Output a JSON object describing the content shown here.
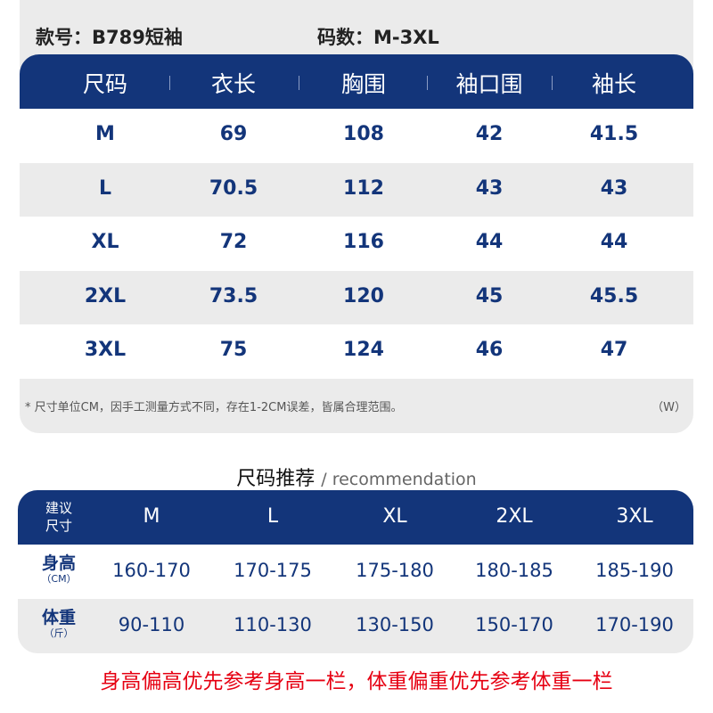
{
  "info": {
    "style_label": "款号：B789短袖",
    "size_range_label": "码数：M-3XL"
  },
  "size_table": {
    "headers": [
      "尺码",
      "衣长",
      "胸围",
      "袖口围",
      "袖长"
    ],
    "rows": [
      [
        "M",
        "69",
        "108",
        "42",
        "41.5"
      ],
      [
        "L",
        "70.5",
        "112",
        "43",
        "43"
      ],
      [
        "XL",
        "72",
        "116",
        "44",
        "44"
      ],
      [
        "2XL",
        "73.5",
        "120",
        "45",
        "45.5"
      ],
      [
        "3XL",
        "75",
        "124",
        "46",
        "47"
      ]
    ],
    "note": "* 尺寸单位CM，因手工测量方式不同，存在1-2CM误差，皆属合理范围。",
    "note_suffix": "（W）"
  },
  "recommendation": {
    "title": "尺码推荐",
    "subtitle": "/ recommendation",
    "header_label": [
      "建议",
      "尺寸"
    ],
    "sizes": [
      "M",
      "L",
      "XL",
      "2XL",
      "3XL"
    ],
    "rows": [
      {
        "label": "身高",
        "unit": "（CM）",
        "values": [
          "160-170",
          "170-175",
          "175-180",
          "180-185",
          "185-190"
        ]
      },
      {
        "label": "体重",
        "unit": "（斤）",
        "values": [
          "90-110",
          "110-130",
          "130-150",
          "150-170",
          "170-190"
        ]
      }
    ],
    "advice": "身高偏高优先参考身高一栏，体重偏重优先参考体重一栏"
  },
  "colors": {
    "header_blue": "#13357a",
    "advice_red": "#e60012",
    "row_gray": "#ebebeb"
  }
}
